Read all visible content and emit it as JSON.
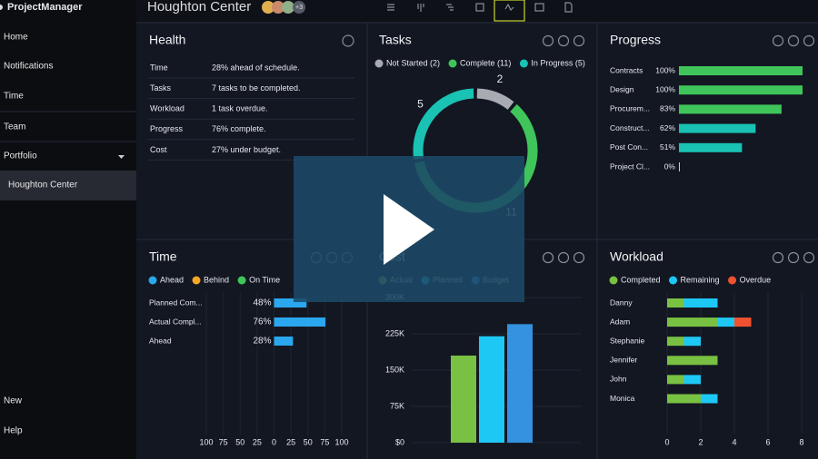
{
  "sidebar": {
    "app_name": "ProjectManager",
    "nav": [
      "Home",
      "Notifications",
      "Time",
      "Team",
      "Portfolio"
    ],
    "active_project": "Houghton Center",
    "bottom_nav": [
      "New",
      "Help"
    ]
  },
  "header": {
    "title": "Houghton Center",
    "avatar_more": "+3"
  },
  "health": {
    "title": "Health",
    "rows": [
      [
        "Time",
        "28% ahead of schedule."
      ],
      [
        "Tasks",
        "7 tasks to be completed."
      ],
      [
        "Workload",
        "1 task overdue."
      ],
      [
        "Progress",
        "76% complete."
      ],
      [
        "Cost",
        "27% under budget."
      ]
    ]
  },
  "chart_data": [
    {
      "type": "donut",
      "title": "Tasks",
      "categories": [
        "Not Started (2)",
        "Complete (11)",
        "In Progress (5)"
      ],
      "values": [
        2,
        11,
        5
      ],
      "colors": [
        "#a9abb3",
        "#3fc55a",
        "#19c2b3"
      ]
    },
    {
      "type": "hbar",
      "title": "Progress",
      "categories": [
        "Contracts",
        "Design",
        "Procurem...",
        "Construct...",
        "Post Con...",
        "Project Cl..."
      ],
      "values": [
        100,
        100,
        83,
        62,
        51,
        0
      ],
      "value_labels": [
        "100%",
        "100%",
        "83%",
        "62%",
        "51%",
        "0%"
      ],
      "colors": [
        "#3fc55a",
        "#3fc55a",
        "#3fc55a",
        "#19c2b3",
        "#19c2b3",
        "#19c2b3"
      ],
      "xlim": [
        0,
        100
      ]
    },
    {
      "type": "diverging",
      "title": "Time",
      "categories": [
        "Planned Com...",
        "Actual Compl...",
        "Ahead"
      ],
      "series": [
        {
          "name": "Ahead",
          "color": "#2aa7ee",
          "values": [
            48,
            76,
            28
          ],
          "value_labels": [
            "48%",
            "76%",
            "28%"
          ]
        },
        {
          "name": "Behind",
          "color": "#f5a623",
          "values": [
            null,
            null,
            null
          ]
        },
        {
          "name": "On Time",
          "color": "#3fc55a",
          "values": [
            null,
            null,
            null
          ]
        }
      ],
      "xlim": [
        -100,
        100
      ],
      "xticks": [
        {
          "value": -100,
          "label": "100"
        },
        {
          "value": -75,
          "label": "75"
        },
        {
          "value": -50,
          "label": "50"
        },
        {
          "value": -25,
          "label": "25"
        },
        0,
        25,
        50,
        75,
        100
      ]
    },
    {
      "type": "column",
      "title": "Cost",
      "series": [
        {
          "name": "Actual",
          "color": "#79c142",
          "values": [
            180000
          ]
        },
        {
          "name": "Planned",
          "color": "#1ec8f5",
          "values": [
            220000
          ]
        },
        {
          "name": "Budget",
          "color": "#3492e0",
          "values": [
            245000
          ]
        }
      ],
      "ylim": [
        0,
        300000
      ],
      "yticks": [
        {
          "value": 0,
          "label": "$0"
        },
        {
          "value": 75000,
          "label": "75K"
        },
        {
          "value": 150000,
          "label": "150K"
        },
        {
          "value": 225000,
          "label": "225K"
        },
        {
          "value": 300000,
          "label": "300K"
        }
      ]
    },
    {
      "type": "stacked",
      "title": "Workload",
      "categories": [
        "Danny",
        "Adam",
        "Stephanie",
        "Jennifer",
        "John",
        "Monica"
      ],
      "series": [
        {
          "name": "Completed",
          "color": "#79c142",
          "values": [
            1,
            3,
            1,
            3,
            1,
            2
          ]
        },
        {
          "name": "Remaining",
          "color": "#1ec8f5",
          "values": [
            2,
            1,
            1,
            0,
            1,
            1
          ]
        },
        {
          "name": "Overdue",
          "color": "#f0522f",
          "values": [
            0,
            1,
            0,
            0,
            0,
            0
          ]
        }
      ],
      "xlim": [
        0,
        8
      ],
      "xticks": [
        0,
        2,
        4,
        6,
        8
      ]
    }
  ]
}
